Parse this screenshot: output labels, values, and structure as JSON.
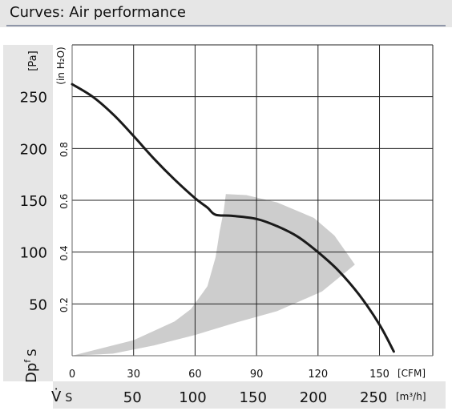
{
  "header": {
    "title": "Curves: Air performance"
  },
  "chart_data": {
    "type": "line",
    "title": "Curves: Air performance",
    "x_primary": {
      "label": "[CFM]",
      "ticks": [
        0,
        30,
        60,
        90,
        120,
        150
      ],
      "range": [
        0,
        176
      ]
    },
    "x_secondary": {
      "symbol": "V̇",
      "symbol_sub": "S",
      "label": "[m³/h]",
      "ticks": [
        50,
        100,
        150,
        200,
        250
      ]
    },
    "y_primary": {
      "symbol": "Dp",
      "symbol_sub": "f",
      "symbol_tail": "S",
      "label": "[Pa]",
      "ticks": [
        50,
        100,
        150,
        200,
        250
      ],
      "range": [
        0,
        300
      ]
    },
    "y_secondary": {
      "label": "(in H₂O)",
      "ticks": [
        "0.2",
        "0.4",
        "0.6",
        "0.8"
      ]
    },
    "grid": true,
    "series": [
      {
        "points": [
          [
            0,
            262
          ],
          [
            10,
            250
          ],
          [
            20,
            233
          ],
          [
            30,
            212
          ],
          [
            40,
            190
          ],
          [
            50,
            170
          ],
          [
            60,
            152
          ],
          [
            66,
            143
          ],
          [
            70,
            136
          ],
          [
            78,
            135
          ],
          [
            90,
            132
          ],
          [
            100,
            125
          ],
          [
            110,
            115
          ],
          [
            120,
            100
          ],
          [
            130,
            82
          ],
          [
            140,
            59
          ],
          [
            150,
            30
          ],
          [
            157,
            4
          ]
        ]
      }
    ],
    "operating_region": {
      "color": "#cdcdcd",
      "boundary": [
        [
          0,
          0
        ],
        [
          30,
          15
        ],
        [
          50,
          33
        ],
        [
          58,
          45
        ],
        [
          66,
          67
        ],
        [
          70,
          95
        ],
        [
          72,
          120
        ],
        [
          74,
          140
        ],
        [
          75,
          156
        ],
        [
          85,
          155
        ],
        [
          100,
          148
        ],
        [
          118,
          133
        ],
        [
          128,
          116
        ],
        [
          138,
          88
        ],
        [
          122,
          62
        ],
        [
          100,
          43
        ],
        [
          80,
          32
        ],
        [
          60,
          20
        ],
        [
          40,
          10
        ],
        [
          20,
          2
        ],
        [
          0,
          0
        ]
      ]
    }
  }
}
